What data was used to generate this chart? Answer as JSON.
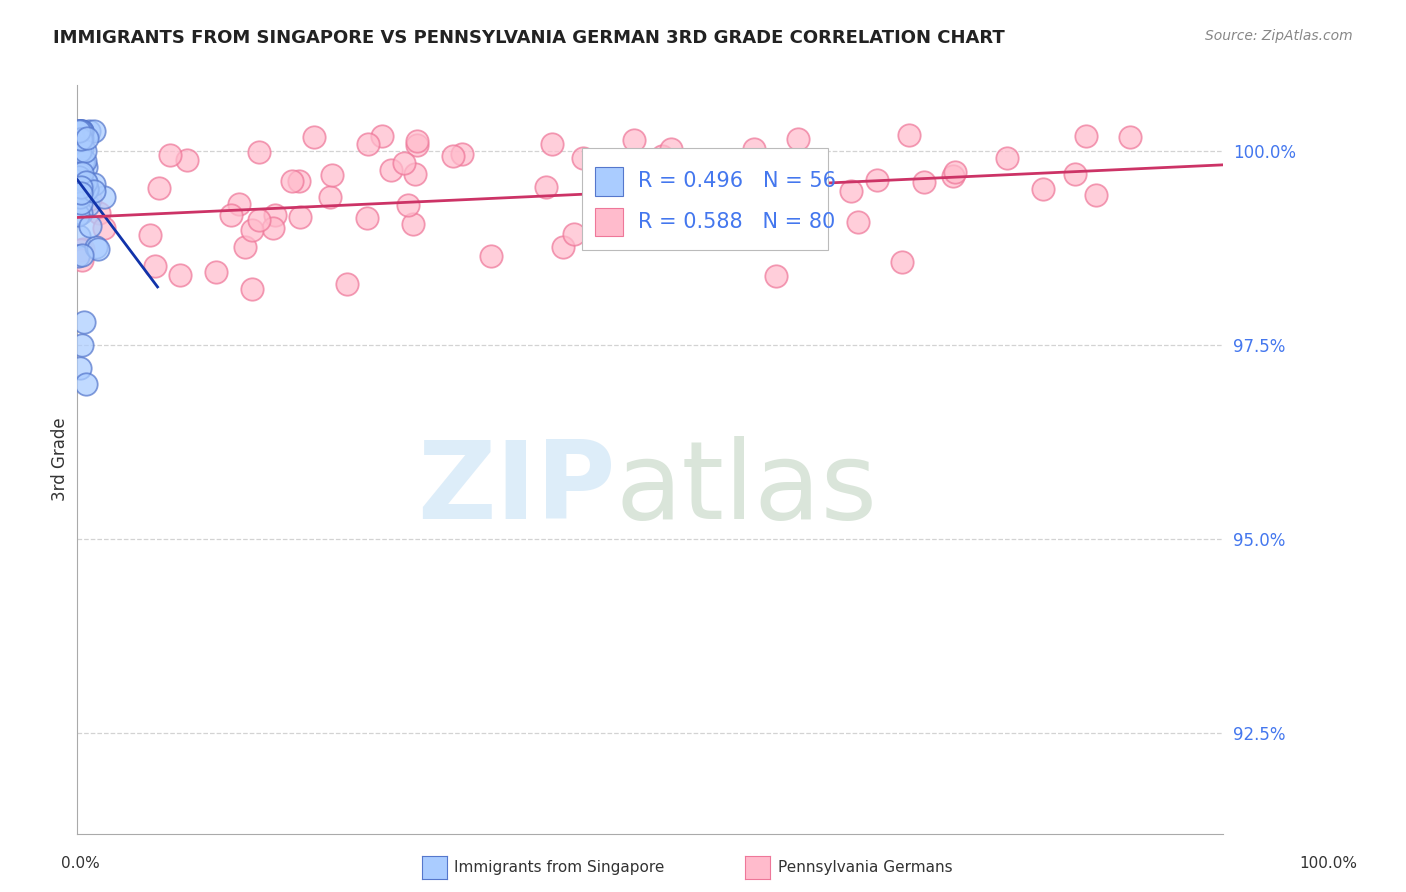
{
  "title": "IMMIGRANTS FROM SINGAPORE VS PENNSYLVANIA GERMAN 3RD GRADE CORRELATION CHART",
  "source": "Source: ZipAtlas.com",
  "ylabel": "3rd Grade",
  "y_ticks": [
    92.5,
    95.0,
    97.5,
    100.0
  ],
  "y_tick_labels": [
    "92.5%",
    "95.0%",
    "97.5%",
    "100.0%"
  ],
  "xlim": [
    0.0,
    1.0
  ],
  "ylim": [
    91.2,
    100.85
  ],
  "R1": 0.496,
  "N1": 56,
  "R2": 0.588,
  "N2": 80,
  "series1_face": "#aaccff",
  "series1_edge": "#5577cc",
  "series2_face": "#ffbbcc",
  "series2_edge": "#ee7799",
  "trendline1_color": "#1133aa",
  "trendline2_color": "#cc3366",
  "legend_text_color": "#4477ee",
  "ytick_color": "#4477ee",
  "grid_color": "#cccccc",
  "background_color": "#ffffff",
  "title_fontsize": 13,
  "source_fontsize": 10,
  "tick_fontsize": 12,
  "legend_fontsize": 15,
  "ylabel_fontsize": 12,
  "watermark_zip_color": "#cce4f6",
  "watermark_atlas_color": "#c2d4c2",
  "bottom_legend_label1": "Immigrants from Singapore",
  "bottom_legend_label2": "Pennsylvania Germans"
}
